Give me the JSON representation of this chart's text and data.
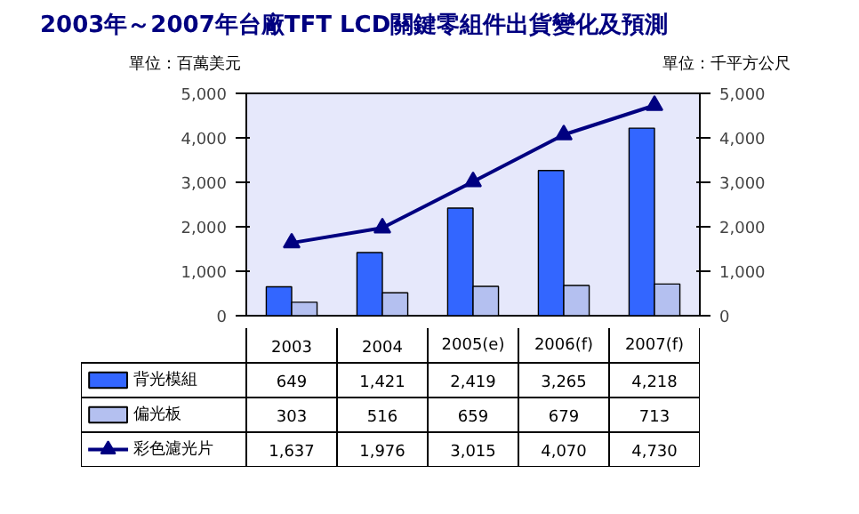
{
  "chart_data": {
    "type": "bar",
    "title": "2003年～2007年台廠TFT LCD關鍵零組件出貨變化及預測",
    "ylabel": "單位：百萬美元",
    "y2label": "單位：千平方公尺",
    "categories": [
      "2003",
      "2004",
      "2005(e)",
      "2006(f)",
      "2007(f)"
    ],
    "series": [
      {
        "name": "背光模組",
        "color": "#3366ff",
        "values": [
          649,
          1421,
          2419,
          3265,
          4218
        ],
        "value_labels": [
          "649",
          "1,421",
          "2,419",
          "3,265",
          "4,218"
        ]
      },
      {
        "name": "偏光板",
        "color": "#b4c0f0",
        "values": [
          303,
          516,
          659,
          679,
          713
        ],
        "value_labels": [
          "303",
          "516",
          "659",
          "679",
          "713"
        ]
      },
      {
        "name": "彩色濾光片",
        "color": "#000080",
        "type": "line",
        "axis": "y2",
        "marker": "triangle",
        "values": [
          1637,
          1976,
          3015,
          4070,
          4730
        ],
        "value_labels": [
          "1,637",
          "1,976",
          "3,015",
          "4,070",
          "4,730"
        ]
      }
    ],
    "ylim": [
      0,
      5000
    ],
    "yticks": [
      {
        "value": 0,
        "label": "0"
      },
      {
        "value": 1000,
        "label": "1,000"
      },
      {
        "value": 2000,
        "label": "2,000"
      },
      {
        "value": 3000,
        "label": "3,000"
      },
      {
        "value": 4000,
        "label": "4,000"
      },
      {
        "value": 5000,
        "label": "5,000"
      }
    ],
    "y2lim": [
      0,
      5000
    ],
    "y2ticks": [
      {
        "value": 0,
        "label": "0"
      },
      {
        "value": 1000,
        "label": "1,000"
      },
      {
        "value": 2000,
        "label": "2,000"
      },
      {
        "value": 3000,
        "label": "3,000"
      },
      {
        "value": 4000,
        "label": "4,000"
      },
      {
        "value": 5000,
        "label": "5,000"
      }
    ],
    "legend": "bottom",
    "grid": false
  }
}
